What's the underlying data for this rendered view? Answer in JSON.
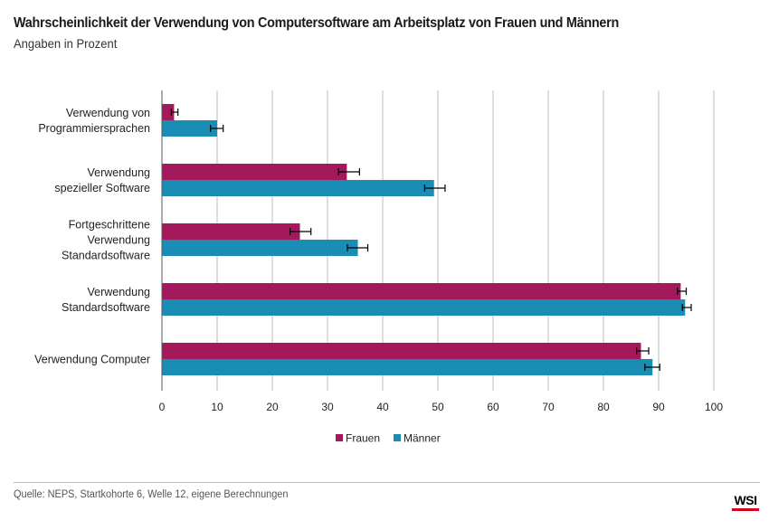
{
  "header": {
    "title": "Wahrscheinlichkeit der Verwendung von Computersoftware am Arbeitsplatz von Frauen und Männern",
    "subtitle": "Angaben in Prozent"
  },
  "footer": {
    "source": "Quelle: NEPS, Startkohorte 6, Welle 12, eigene Berechnungen",
    "logo": "WSI"
  },
  "colors": {
    "frauen": "#a3195b",
    "maenner": "#1a8db5",
    "grid": "#bdbdbd",
    "axis": "#555555",
    "text": "#222222",
    "logo_accent": "#d6001c"
  },
  "chart_data": {
    "type": "bar",
    "orientation": "horizontal",
    "categories": [
      [
        "Verwendung von",
        "Programmiersprachen"
      ],
      [
        "Verwendung",
        "spezieller Software"
      ],
      [
        "Fortgeschrittene",
        "Verwendung",
        "Standardsoftware"
      ],
      [
        "Verwendung",
        "Standardsoftware"
      ],
      [
        "Verwendung Computer"
      ]
    ],
    "series": [
      {
        "name": "Frauen",
        "color": "#a3195b",
        "values": [
          2.2,
          33.5,
          25.0,
          94.0,
          86.8
        ],
        "error_low": [
          1.7,
          32.0,
          23.2,
          93.4,
          86.0
        ],
        "error_high": [
          2.9,
          35.8,
          27.0,
          95.0,
          88.2
        ]
      },
      {
        "name": "Männer",
        "color": "#1a8db5",
        "values": [
          10.0,
          49.3,
          35.5,
          94.8,
          88.9
        ],
        "error_low": [
          8.8,
          47.6,
          33.6,
          94.3,
          87.5
        ],
        "error_high": [
          11.1,
          51.3,
          37.3,
          95.9,
          90.2
        ]
      }
    ],
    "xlim": [
      0,
      100
    ],
    "x_ticks": [
      "0",
      "10",
      "20",
      "30",
      "40",
      "50",
      "60",
      "70",
      "80",
      "90",
      "100"
    ],
    "grid": true,
    "legend": "bottom-center",
    "title": "Wahrscheinlichkeit der Verwendung von Computersoftware am Arbeitsplatz von Frauen und Männern",
    "subtitle": "Angaben in Prozent",
    "xlabel": "",
    "ylabel": ""
  }
}
